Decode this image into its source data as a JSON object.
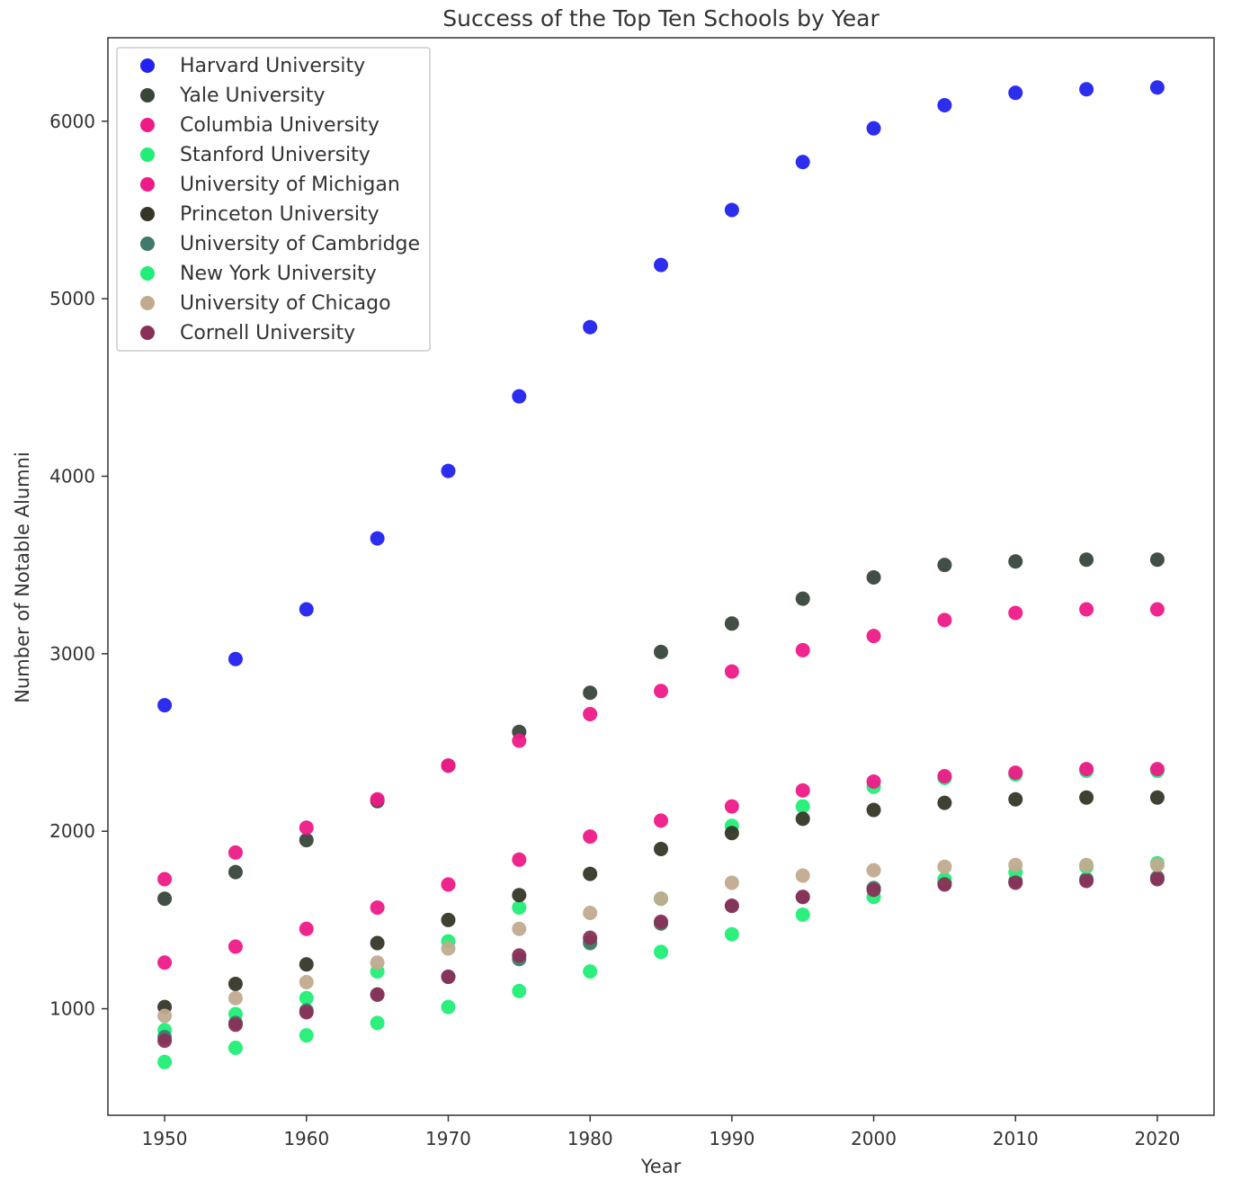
{
  "chart_data": {
    "type": "scatter",
    "title": "Success of the Top Ten Schools by Year",
    "xlabel": "Year",
    "ylabel": "Number of Notable Alumni",
    "xlim": [
      1946,
      2024
    ],
    "ylim": [
      400,
      6470
    ],
    "xticks": [
      "1950",
      "1960",
      "1970",
      "1980",
      "1990",
      "2000",
      "2010",
      "2020"
    ],
    "yticks": [
      "1000",
      "2000",
      "3000",
      "4000",
      "5000",
      "6000"
    ],
    "grid": false,
    "legend_position": "top-left",
    "x": [
      1950,
      1955,
      1960,
      1965,
      1970,
      1975,
      1980,
      1985,
      1990,
      1995,
      2000,
      2005,
      2010,
      2015,
      2020
    ],
    "series": [
      {
        "name": "Harvard University",
        "color": "#2222ee",
        "values": [
          2710,
          2970,
          3250,
          3650,
          4030,
          4450,
          4840,
          5190,
          5500,
          5770,
          5960,
          6090,
          6160,
          6180,
          6190
        ]
      },
      {
        "name": "Yale University",
        "color": "#38463a",
        "values": [
          1620,
          1770,
          1950,
          2170,
          2370,
          2560,
          2780,
          3010,
          3170,
          3310,
          3430,
          3500,
          3520,
          3530,
          3530
        ]
      },
      {
        "name": "Columbia University",
        "color": "#ee1a88",
        "values": [
          1730,
          1880,
          2020,
          2180,
          2370,
          2510,
          2660,
          2790,
          2900,
          3020,
          3100,
          3190,
          3230,
          3250,
          3250
        ]
      },
      {
        "name": "Stanford University",
        "color": "#22ee77",
        "values": [
          880,
          970,
          1060,
          1210,
          1380,
          1570,
          1380,
          1620,
          2030,
          2140,
          2250,
          2300,
          2320,
          2340,
          2340
        ]
      },
      {
        "name": "University of Michigan",
        "color": "#ee1a88",
        "values": [
          1260,
          1350,
          1450,
          1570,
          1700,
          1840,
          1970,
          2060,
          2140,
          2230,
          2280,
          2310,
          2330,
          2350,
          2350
        ]
      },
      {
        "name": "Princeton University",
        "color": "#363628",
        "values": [
          1010,
          1140,
          1250,
          1370,
          1500,
          1640,
          1760,
          1900,
          1990,
          2070,
          2120,
          2160,
          2180,
          2190,
          2190
        ]
      },
      {
        "name": "University of Cambridge",
        "color": "#3f7a6a",
        "values": [
          840,
          920,
          990,
          1080,
          1180,
          1280,
          1370,
          1480,
          1580,
          1630,
          1680,
          1710,
          1720,
          1730,
          1740
        ]
      },
      {
        "name": "New York University",
        "color": "#22ee77",
        "values": [
          700,
          780,
          850,
          920,
          1010,
          1100,
          1210,
          1320,
          1420,
          1530,
          1630,
          1730,
          1770,
          1800,
          1820
        ]
      },
      {
        "name": "University of Chicago",
        "color": "#c1ab90",
        "values": [
          960,
          1060,
          1150,
          1260,
          1340,
          1450,
          1540,
          1620,
          1710,
          1750,
          1780,
          1800,
          1810,
          1810,
          1810
        ]
      },
      {
        "name": "Cornell University",
        "color": "#8a3058",
        "values": [
          820,
          910,
          980,
          1080,
          1180,
          1300,
          1400,
          1490,
          1580,
          1630,
          1670,
          1700,
          1710,
          1720,
          1730
        ]
      }
    ]
  }
}
